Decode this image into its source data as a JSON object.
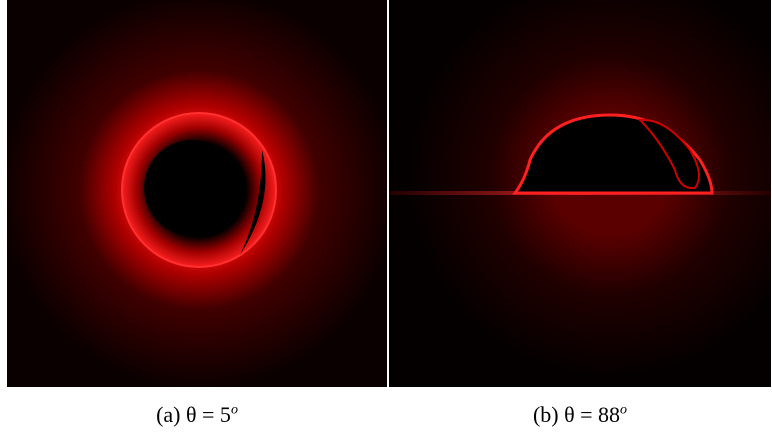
{
  "panels": [
    {
      "caption": "(a) θ = 5",
      "superscript": "o"
    },
    {
      "caption": "(b) θ = 88",
      "superscript": "o"
    }
  ]
}
